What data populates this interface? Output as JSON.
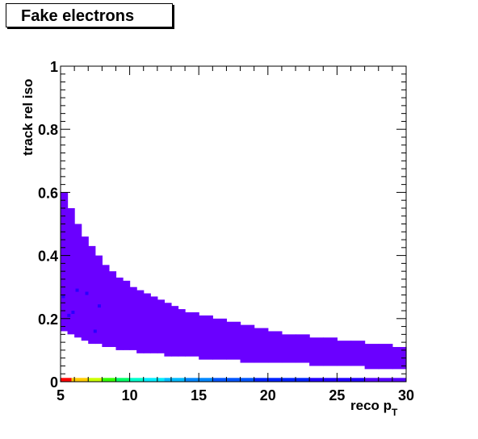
{
  "chart_data": {
    "type": "heatmap",
    "title": "Fake electrons",
    "xlabel": "reco p",
    "xlabel_sub": "T",
    "ylabel": "track rel iso",
    "xlim": [
      5,
      30
    ],
    "ylim": [
      0,
      1
    ],
    "x_ticks": [
      "5",
      "10",
      "15",
      "20",
      "25",
      "30"
    ],
    "y_ticks": [
      "0",
      "0.2",
      "0.4",
      "0.6",
      "0.8",
      "1"
    ],
    "grid": false,
    "colors": {
      "band": "#6a00ff",
      "frame": "#000000"
    },
    "band": {
      "x": [
        5,
        5.5,
        6,
        6.5,
        7,
        7.5,
        8,
        8.5,
        9,
        9.5,
        10,
        10.5,
        11,
        11.5,
        12,
        12.5,
        13,
        13.5,
        14,
        15,
        16,
        17,
        18,
        19,
        20,
        21,
        22,
        23,
        24,
        25,
        26,
        27,
        28,
        29,
        30
      ],
      "y_low": [
        0.16,
        0.15,
        0.14,
        0.13,
        0.12,
        0.12,
        0.11,
        0.11,
        0.1,
        0.1,
        0.1,
        0.09,
        0.09,
        0.09,
        0.09,
        0.08,
        0.08,
        0.08,
        0.08,
        0.07,
        0.07,
        0.07,
        0.06,
        0.06,
        0.06,
        0.06,
        0.06,
        0.05,
        0.05,
        0.05,
        0.05,
        0.04,
        0.04,
        0.04,
        0.04
      ],
      "y_high": [
        0.6,
        0.55,
        0.5,
        0.46,
        0.43,
        0.4,
        0.37,
        0.35,
        0.33,
        0.32,
        0.3,
        0.29,
        0.28,
        0.27,
        0.26,
        0.25,
        0.24,
        0.23,
        0.22,
        0.21,
        0.2,
        0.19,
        0.18,
        0.17,
        0.16,
        0.15,
        0.15,
        0.14,
        0.14,
        0.13,
        0.13,
        0.12,
        0.12,
        0.11,
        0.11
      ]
    },
    "dark_cells": [
      [
        5.2,
        0.27
      ],
      [
        5.6,
        0.21
      ],
      [
        5.9,
        0.22
      ],
      [
        6.2,
        0.29
      ],
      [
        6.9,
        0.28
      ],
      [
        7.5,
        0.16
      ],
      [
        7.8,
        0.24
      ]
    ],
    "bottom_row": {
      "y": [
        0,
        0.012
      ],
      "segments": [
        {
          "x": [
            5,
            5.8
          ],
          "color": "#ff0000"
        },
        {
          "x": [
            5.8,
            7
          ],
          "color": "#ffcc00"
        },
        {
          "x": [
            7,
            8
          ],
          "color": "#ccff00"
        },
        {
          "x": [
            8,
            9
          ],
          "color": "#33ff00"
        },
        {
          "x": [
            9,
            10
          ],
          "color": "#00ff66"
        },
        {
          "x": [
            10,
            11
          ],
          "color": "#00ffcc"
        },
        {
          "x": [
            11,
            12.5
          ],
          "color": "#00eeff"
        },
        {
          "x": [
            12.5,
            14
          ],
          "color": "#00bbff"
        },
        {
          "x": [
            14,
            16
          ],
          "color": "#0088ff"
        },
        {
          "x": [
            16,
            19
          ],
          "color": "#0055ff"
        },
        {
          "x": [
            19,
            23
          ],
          "color": "#0022ff"
        },
        {
          "x": [
            23,
            27
          ],
          "color": "#2200ff"
        },
        {
          "x": [
            27,
            30
          ],
          "color": "#5500ff"
        }
      ]
    }
  }
}
